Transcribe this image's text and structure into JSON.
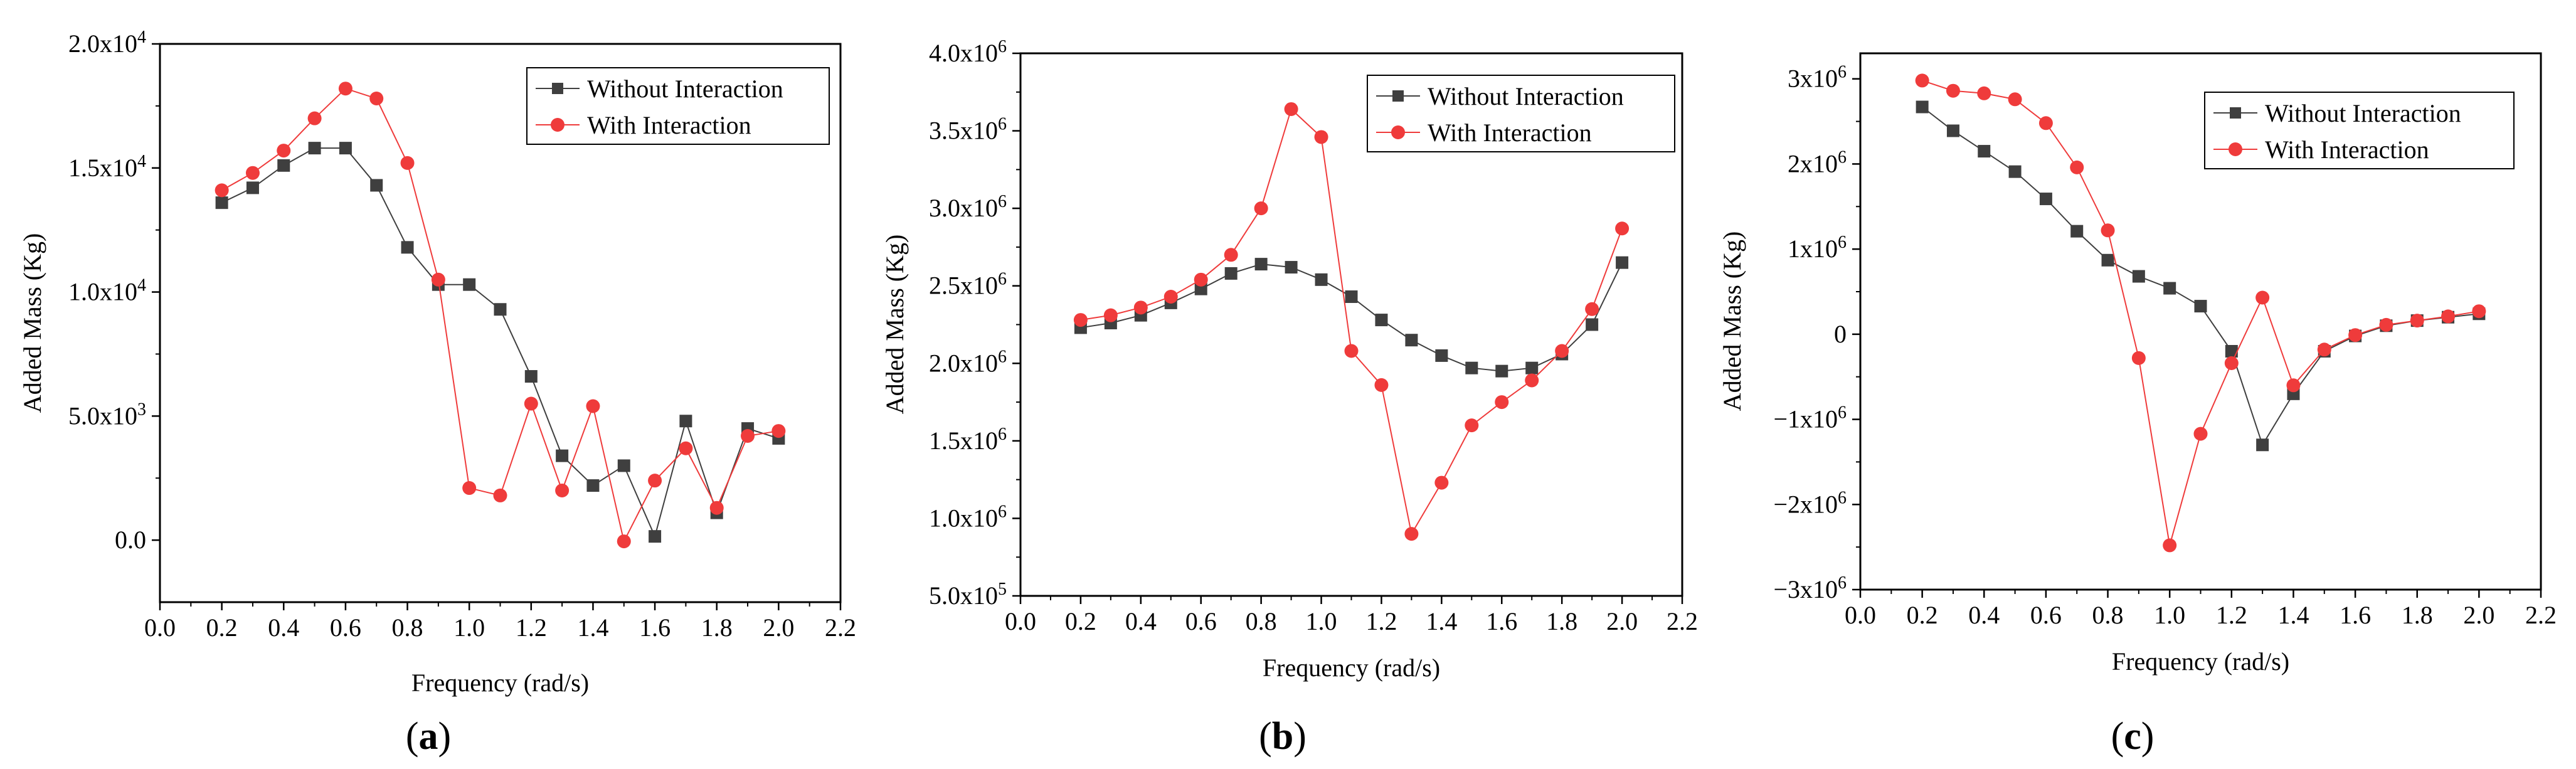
{
  "colors": {
    "without": "#3f3f3f",
    "with": "#ef3b3b"
  },
  "chart_data": [
    {
      "type": "line",
      "panel": "a",
      "title": "",
      "xlabel": "Frequency (rad/s)",
      "ylabel": "Added Mass (Kg)",
      "xlim": [
        0.0,
        2.2
      ],
      "ylim": [
        -2500,
        20000
      ],
      "x_ticks": [
        0.0,
        0.2,
        0.4,
        0.6,
        0.8,
        1.0,
        1.2,
        1.4,
        1.6,
        1.8,
        2.0,
        2.2
      ],
      "x_tick_labels": [
        "0.0",
        "0.2",
        "0.4",
        "0.6",
        "0.8",
        "1.0",
        "1.2",
        "1.4",
        "1.6",
        "1.8",
        "2.0",
        "2.2"
      ],
      "y_ticks": [
        {
          "value": 0,
          "mant": "0.0",
          "exp": ""
        },
        {
          "value": 5000,
          "mant": "5.0x10",
          "exp": "3"
        },
        {
          "value": 10000,
          "mant": "1.0x10",
          "exp": "4"
        },
        {
          "value": 15000,
          "mant": "1.5x10",
          "exp": "4"
        },
        {
          "value": 20000,
          "mant": "2.0x10",
          "exp": "4"
        }
      ],
      "legend": [
        "Without Interaction",
        "With Interaction"
      ],
      "legend_position": "top-right",
      "x": [
        0.2,
        0.3,
        0.4,
        0.5,
        0.6,
        0.7,
        0.8,
        0.9,
        1.0,
        1.1,
        1.2,
        1.3,
        1.4,
        1.5,
        1.6,
        1.7,
        1.8,
        1.9,
        2.0
      ],
      "series": [
        {
          "name": "Without Interaction",
          "marker": "square",
          "values": [
            13600,
            14200,
            15100,
            15800,
            15800,
            14300,
            11800,
            10300,
            10300,
            9300,
            6600,
            3400,
            2200,
            3000,
            150,
            4800,
            1100,
            4500,
            4100
          ]
        },
        {
          "name": "With Interaction",
          "marker": "circle",
          "values": [
            14100,
            14800,
            15700,
            17000,
            18200,
            17800,
            15200,
            10500,
            2100,
            1800,
            5500,
            2000,
            5400,
            -50,
            2400,
            3700,
            1300,
            4200,
            4400
          ]
        }
      ],
      "label": "(a)"
    },
    {
      "type": "line",
      "panel": "b",
      "title": "",
      "xlabel": "Frequency (rad/s)",
      "ylabel": "Added Mass (Kg)",
      "xlim": [
        0.0,
        2.2
      ],
      "ylim": [
        500000,
        4000000
      ],
      "x_ticks": [
        0.0,
        0.2,
        0.4,
        0.6,
        0.8,
        1.0,
        1.2,
        1.4,
        1.6,
        1.8,
        2.0,
        2.2
      ],
      "x_tick_labels": [
        "0.0",
        "0.2",
        "0.4",
        "0.6",
        "0.8",
        "1.0",
        "1.2",
        "1.4",
        "1.6",
        "1.8",
        "2.0",
        "2.2"
      ],
      "y_ticks": [
        {
          "value": 500000,
          "mant": "5.0x10",
          "exp": "5"
        },
        {
          "value": 1000000,
          "mant": "1.0x10",
          "exp": "6"
        },
        {
          "value": 1500000,
          "mant": "1.5x10",
          "exp": "6"
        },
        {
          "value": 2000000,
          "mant": "2.0x10",
          "exp": "6"
        },
        {
          "value": 2500000,
          "mant": "2.5x10",
          "exp": "6"
        },
        {
          "value": 3000000,
          "mant": "3.0x10",
          "exp": "6"
        },
        {
          "value": 3500000,
          "mant": "3.5x10",
          "exp": "6"
        },
        {
          "value": 4000000,
          "mant": "4.0x10",
          "exp": "6"
        }
      ],
      "legend": [
        "Without Interaction",
        "With Interaction"
      ],
      "legend_position": "top-right",
      "x": [
        0.2,
        0.3,
        0.4,
        0.5,
        0.6,
        0.7,
        0.8,
        0.9,
        1.0,
        1.1,
        1.2,
        1.3,
        1.4,
        1.5,
        1.6,
        1.7,
        1.8,
        1.9,
        2.0
      ],
      "series": [
        {
          "name": "Without Interaction",
          "marker": "square",
          "values": [
            2230000,
            2260000,
            2310000,
            2390000,
            2480000,
            2580000,
            2640000,
            2620000,
            2540000,
            2430000,
            2280000,
            2150000,
            2050000,
            1970000,
            1950000,
            1970000,
            2060000,
            2250000,
            2650000
          ]
        },
        {
          "name": "With Interaction",
          "marker": "circle",
          "values": [
            2280000,
            2310000,
            2360000,
            2430000,
            2540000,
            2700000,
            3000000,
            3640000,
            3460000,
            2080000,
            1860000,
            900000,
            1230000,
            1600000,
            1750000,
            1890000,
            2080000,
            2350000,
            2870000
          ]
        }
      ],
      "label": "(b)"
    },
    {
      "type": "line",
      "panel": "c",
      "title": "",
      "xlabel": "Frequency (rad/s)",
      "ylabel": "Added Mass (Kg)",
      "xlim": [
        0.0,
        2.2
      ],
      "ylim": [
        -3000000,
        3300000
      ],
      "x_ticks": [
        0.0,
        0.2,
        0.4,
        0.6,
        0.8,
        1.0,
        1.2,
        1.4,
        1.6,
        1.8,
        2.0,
        2.2
      ],
      "x_tick_labels": [
        "0.0",
        "0.2",
        "0.4",
        "0.6",
        "0.8",
        "1.0",
        "1.2",
        "1.4",
        "1.6",
        "1.8",
        "2.0",
        "2.2"
      ],
      "y_ticks": [
        {
          "value": -3000000,
          "mant": "−3x10",
          "exp": "6"
        },
        {
          "value": -2000000,
          "mant": "−2x10",
          "exp": "6"
        },
        {
          "value": -1000000,
          "mant": "−1x10",
          "exp": "6"
        },
        {
          "value": 0,
          "mant": "0",
          "exp": ""
        },
        {
          "value": 1000000,
          "mant": "1x10",
          "exp": "6"
        },
        {
          "value": 2000000,
          "mant": "2x10",
          "exp": "6"
        },
        {
          "value": 3000000,
          "mant": "3x10",
          "exp": "6"
        }
      ],
      "legend": [
        "Without Interaction",
        "With Interaction"
      ],
      "legend_position": "top-right",
      "x": [
        0.2,
        0.3,
        0.4,
        0.5,
        0.6,
        0.7,
        0.8,
        0.9,
        1.0,
        1.1,
        1.2,
        1.3,
        1.4,
        1.5,
        1.6,
        1.7,
        1.8,
        1.9,
        2.0
      ],
      "series": [
        {
          "name": "Without Interaction",
          "marker": "square",
          "values": [
            2670000,
            2390000,
            2150000,
            1910000,
            1590000,
            1210000,
            870000,
            680000,
            540000,
            330000,
            -200000,
            -1300000,
            -700000,
            -200000,
            -20000,
            100000,
            160000,
            200000,
            240000
          ]
        },
        {
          "name": "With Interaction",
          "marker": "circle",
          "values": [
            2980000,
            2860000,
            2830000,
            2760000,
            2480000,
            1960000,
            1220000,
            -280000,
            -2480000,
            -1170000,
            -340000,
            430000,
            -600000,
            -180000,
            -10000,
            110000,
            160000,
            210000,
            270000
          ]
        }
      ],
      "label": "(c)"
    }
  ]
}
